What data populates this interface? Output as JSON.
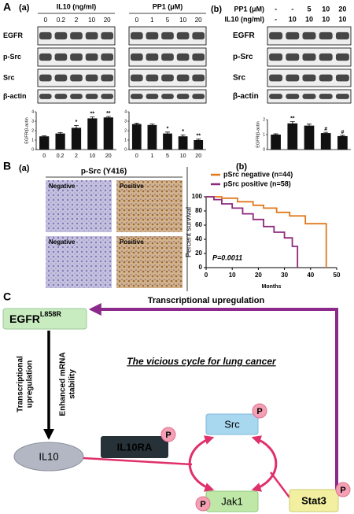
{
  "panel_labels": {
    "A": "A",
    "A_a": "(a)",
    "A_b": "(b)",
    "B": "B",
    "B_a": "(a)",
    "B_b": "(b)",
    "C": "C"
  },
  "blots": {
    "a_il10": {
      "header": "IL10 (ng/ml)",
      "lanes": [
        "0",
        "0.2",
        "2",
        "10",
        "20"
      ]
    },
    "a_pp1": {
      "header": "PP1 (μM)",
      "lanes": [
        "0",
        "1",
        "5",
        "10",
        "20"
      ]
    },
    "b": {
      "rows": [
        {
          "label": "PP1 (μM)",
          "lanes": [
            "-",
            "-",
            "5",
            "10",
            "20"
          ]
        },
        {
          "label": "IL10 (ng/ml)",
          "lanes": [
            "-",
            "10",
            "10",
            "10",
            "10"
          ]
        }
      ]
    },
    "row_labels": [
      "EGFR",
      "p-Src",
      "Src",
      "β-actin"
    ]
  },
  "ihc": {
    "title": "p-Src (Y416)",
    "labels": [
      "Negative",
      "Positive",
      "Negative",
      "Positive"
    ]
  },
  "diagram": {
    "egfr": "EGFR",
    "egfr_sup": "L858R",
    "top_arrow": "Transcriptional upregulation",
    "left_1": [
      "Transcriptional",
      "upregulation"
    ],
    "left_2": [
      "Enhanced mRNA",
      "stability"
    ],
    "title": "The vicious cycle for lung cancer",
    "il10": "IL10",
    "il10ra": "IL10RA",
    "src": "Src",
    "jak1": "Jak1",
    "stat3": "Stat3",
    "phospho": "P"
  },
  "chart_data": [
    {
      "type": "bar",
      "ylabel": "EGFR/β-actin",
      "categories": [
        "0",
        "0.2",
        "2",
        "10",
        "20"
      ],
      "values": [
        1.4,
        1.7,
        2.3,
        3.3,
        3.4
      ],
      "errors": [
        0.05,
        0.1,
        0.25,
        0.15,
        0.1
      ],
      "annotations": [
        null,
        null,
        "*",
        "**",
        "**"
      ],
      "ylim": [
        0,
        4
      ],
      "yticks": [
        0,
        1,
        2,
        3,
        4
      ],
      "color": "#111111"
    },
    {
      "type": "bar",
      "categories": [
        "0",
        "1",
        "5",
        "10",
        "20"
      ],
      "values": [
        2.7,
        2.6,
        1.7,
        1.4,
        1.0
      ],
      "errors": [
        0.1,
        0.1,
        0.15,
        0.15,
        0.1
      ],
      "annotations": [
        null,
        null,
        "*",
        "*",
        "**"
      ],
      "ylim": [
        0,
        4
      ],
      "yticks": [
        0,
        1,
        2,
        3,
        4
      ],
      "color": "#111111"
    },
    {
      "type": "bar",
      "ylabel": "EGFR/β-actin",
      "categories": [
        null,
        null,
        null,
        null,
        null
      ],
      "values": [
        1.0,
        1.75,
        1.6,
        1.1,
        0.9
      ],
      "errors": [
        0.05,
        0.12,
        0.1,
        0.05,
        0.05
      ],
      "annotations": [
        null,
        "**",
        null,
        "#",
        "#"
      ],
      "ylim": [
        0,
        2
      ],
      "yticks": [
        0,
        1,
        2
      ],
      "color": "#111111"
    },
    {
      "type": "line",
      "ylabel": "Percent survival",
      "xlabel": "Months",
      "annotation": "P=0.0011",
      "xlim": [
        0,
        50
      ],
      "xticks": [
        0,
        10,
        20,
        30,
        40,
        50
      ],
      "ylim": [
        0,
        100
      ],
      "yticks": [
        0,
        20,
        40,
        60,
        80,
        100
      ],
      "series": [
        {
          "name": "pSrc negative (n=44)",
          "color": "#e07a1f",
          "x": [
            0,
            6,
            6,
            12,
            12,
            18,
            18,
            22,
            22,
            27,
            27,
            32,
            32,
            38,
            38,
            46,
            46
          ],
          "values": [
            100,
            100,
            98,
            98,
            93,
            93,
            88,
            88,
            84,
            84,
            78,
            78,
            73,
            73,
            62,
            62,
            0
          ]
        },
        {
          "name": "pSrc positive (n=58)",
          "color": "#8e2a7e",
          "x": [
            0,
            3,
            3,
            6,
            6,
            10,
            10,
            14,
            14,
            18,
            18,
            22,
            22,
            26,
            26,
            30,
            30,
            33,
            33,
            35,
            35
          ],
          "values": [
            100,
            100,
            96,
            96,
            90,
            90,
            84,
            84,
            76,
            76,
            68,
            68,
            58,
            58,
            50,
            50,
            42,
            42,
            30,
            30,
            0
          ]
        }
      ]
    }
  ]
}
